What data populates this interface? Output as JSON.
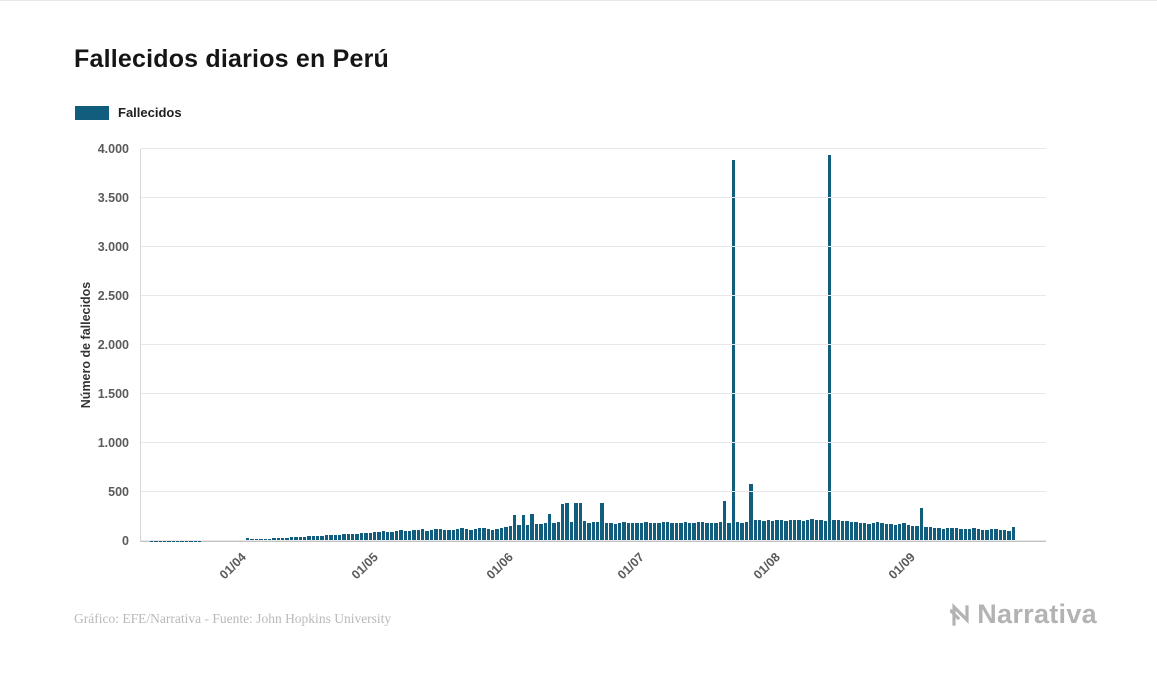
{
  "page": {
    "title": "Fallecidos diarios en Perú"
  },
  "legend": {
    "label": "Fallecidos"
  },
  "footer": {
    "credit": "Gráfico: EFE/Narrativa - Fuente: John Hopkins University"
  },
  "logo": {
    "text": "Narrativa"
  },
  "chart_data": {
    "type": "bar",
    "title": "Fallecidos diarios en Perú",
    "series_name": "Fallecidos",
    "ylabel": "Número de fallecidos",
    "xlabel": "",
    "ylim": [
      0,
      4000
    ],
    "grid": "horizontal",
    "legend_position": "top-left",
    "bar_color": "#105d7d",
    "x_start_date": "2020-03-10",
    "right_padding_days": 7,
    "x_ticks": [
      {
        "index": 22,
        "label": "01/04"
      },
      {
        "index": 52,
        "label": "01/05"
      },
      {
        "index": 83,
        "label": "01/06"
      },
      {
        "index": 113,
        "label": "01/07"
      },
      {
        "index": 144,
        "label": "01/08"
      },
      {
        "index": 175,
        "label": "01/09"
      }
    ],
    "y_ticks": [
      {
        "value": 0,
        "label": "0"
      },
      {
        "value": 500,
        "label": "500"
      },
      {
        "value": 1000,
        "label": "1.000"
      },
      {
        "value": 1500,
        "label": "1.500"
      },
      {
        "value": 2000,
        "label": "2.000"
      },
      {
        "value": 2500,
        "label": "2.500"
      },
      {
        "value": 3000,
        "label": "3.000"
      },
      {
        "value": 3500,
        "label": "3.500"
      },
      {
        "value": 4000,
        "label": "4.000"
      }
    ],
    "values": [
      0,
      0,
      1,
      1,
      1,
      2,
      2,
      2,
      3,
      3,
      4,
      4,
      5,
      5,
      6,
      6,
      7,
      7,
      8,
      8,
      9,
      10,
      11,
      13,
      30,
      16,
      18,
      20,
      22,
      25,
      28,
      30,
      33,
      35,
      38,
      40,
      42,
      45,
      48,
      50,
      52,
      55,
      58,
      60,
      63,
      65,
      68,
      70,
      73,
      75,
      78,
      80,
      85,
      90,
      95,
      100,
      92,
      96,
      104,
      110,
      98,
      102,
      108,
      115,
      120,
      105,
      110,
      118,
      125,
      112,
      108,
      116,
      124,
      130,
      118,
      110,
      120,
      128,
      132,
      122,
      115,
      125,
      131,
      140,
      150,
      270,
      160,
      270,
      165,
      272,
      170,
      175,
      180,
      280,
      185,
      190,
      380,
      390,
      195,
      385,
      392,
      200,
      185,
      190,
      195,
      390,
      188,
      182,
      178,
      185,
      190,
      186,
      183,
      184,
      188,
      190,
      187,
      182,
      185,
      189,
      192,
      186,
      183,
      188,
      190,
      185,
      187,
      189,
      191,
      186,
      184,
      188,
      190,
      410,
      187,
      3890,
      195,
      188,
      190,
      585,
      210,
      215,
      208,
      212,
      205,
      210,
      215,
      208,
      212,
      218,
      210,
      206,
      214,
      220,
      216,
      212,
      209,
      3935,
      215,
      210,
      205,
      200,
      195,
      190,
      185,
      180,
      175,
      185,
      190,
      180,
      175,
      170,
      165,
      175,
      180,
      160,
      155,
      150,
      340,
      145,
      140,
      135,
      130,
      125,
      130,
      135,
      128,
      122,
      118,
      125,
      130,
      120,
      115,
      110,
      118,
      125,
      115,
      110,
      105,
      140
    ]
  }
}
